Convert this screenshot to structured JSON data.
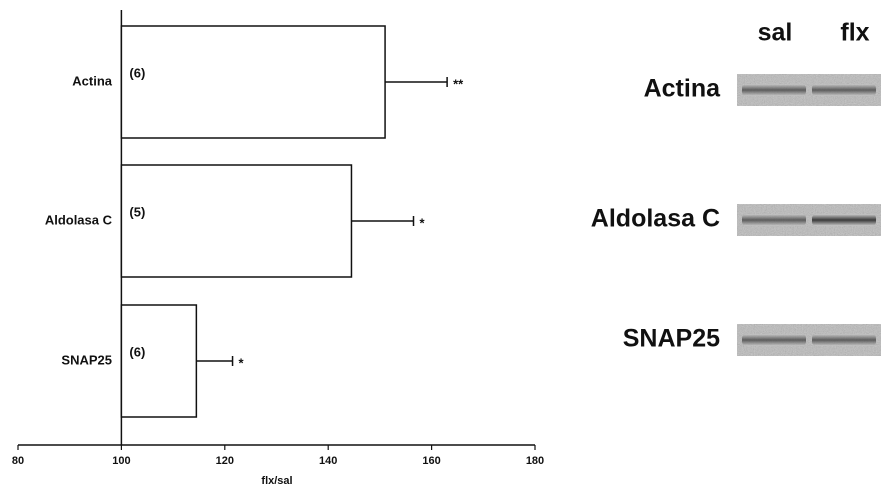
{
  "chart_data": {
    "type": "hbar-error",
    "categories": [
      "Actina",
      "Aldolasa C",
      "SNAP25"
    ],
    "values": [
      151,
      144.5,
      114.5
    ],
    "errors": [
      12,
      12,
      7
    ],
    "n_labels": [
      "(6)",
      "(5)",
      "(6)"
    ],
    "significance": [
      "**",
      "*",
      "*"
    ],
    "baseline": 100,
    "color": "#ffffff",
    "xlabel": "flx/sal",
    "xlim": [
      80,
      180
    ],
    "xticks": [
      80,
      100,
      120,
      140,
      160,
      180
    ]
  },
  "blot": {
    "columns": [
      "sal",
      "flx"
    ],
    "rows": [
      "Actina",
      "Aldolasa C",
      "SNAP25"
    ]
  }
}
